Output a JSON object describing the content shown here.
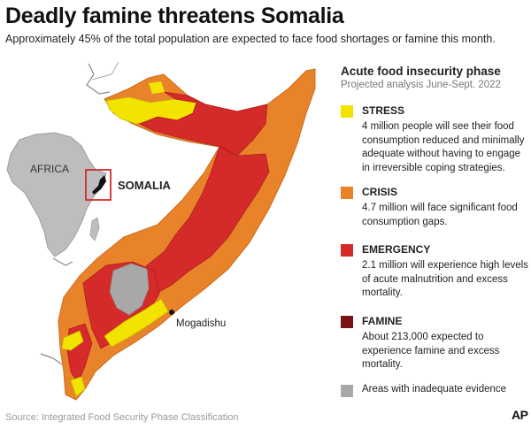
{
  "header": {
    "title": "Deadly famine threatens Somalia",
    "subtitle": "Approximately 45% of the total population are expected to face food shortages or famine this month."
  },
  "map": {
    "inset_africa_label": "AFRICA",
    "inset_country_label": "SOMALIA",
    "city_label": "Mogadishu"
  },
  "legend": {
    "title": "Acute food insecurity phase",
    "subtitle": "Projected analysis June-Sept. 2022",
    "items": [
      {
        "label": "STRESS",
        "color": "#f2e400",
        "description": "4 million people will see their food consumption reduced and minimally adequate without having to engage in irreversible coping strategies."
      },
      {
        "label": "CRISIS",
        "color": "#e8832a",
        "description": "4.7 million will face significant food consumption gaps."
      },
      {
        "label": "EMERGENCY",
        "color": "#d42a2a",
        "description": "2.1 million will experience high levels of acute malnutrition and excess mortality."
      },
      {
        "label": "FAMINE",
        "color": "#7a1414",
        "description": "About 213,000 expected to experience famine and excess mortality."
      },
      {
        "label": "Areas with inadequate evidence",
        "color": "#a8a8a8"
      }
    ]
  },
  "footer": {
    "source": "Source: Integrated Food Security Phase Classification",
    "credit": "AP"
  }
}
